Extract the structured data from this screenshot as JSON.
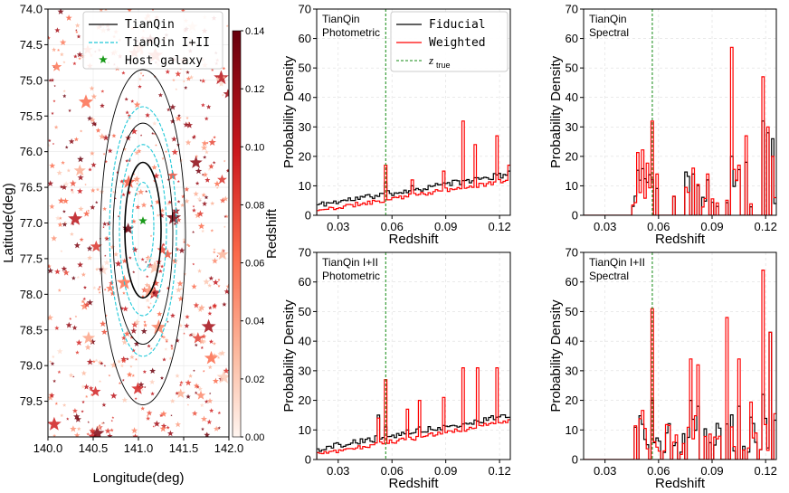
{
  "chart_data": [
    {
      "id": "skymap",
      "type": "scatter",
      "xlabel": "Longitude(deg)",
      "ylabel": "Latitude(deg)",
      "xlim": [
        140.0,
        142.0
      ],
      "ylim": [
        80.0,
        74.0
      ],
      "xticks": [
        "140.0",
        "140.5",
        "141.0",
        "141.5",
        "142.0"
      ],
      "yticks": [
        "74.0",
        "74.5",
        "75.0",
        "75.5",
        "76.0",
        "76.5",
        "77.0",
        "77.5",
        "78.0",
        "78.5",
        "79.0",
        "79.5"
      ],
      "colorbar": {
        "label": "Redshift",
        "min": 0.0,
        "max": 0.14,
        "ticks": [
          "0.00",
          "0.02",
          "0.04",
          "0.06",
          "0.08",
          "0.10",
          "0.12",
          "0.14"
        ]
      },
      "legend": [
        "TianQin",
        "TianQin I+II",
        "Host galaxy"
      ],
      "host_galaxy": {
        "lon": 141.05,
        "lat": 76.97
      },
      "tianqin_contours": [
        {
          "center": [
            141.05,
            77.1
          ],
          "half_width": 0.2,
          "half_height": 0.95
        },
        {
          "center": [
            141.05,
            77.15
          ],
          "half_width": 0.33,
          "half_height": 1.55
        },
        {
          "center": [
            141.05,
            77.2
          ],
          "half_width": 0.47,
          "half_height": 2.35
        }
      ],
      "tianqin_i_ii_contours": [
        {
          "center": [
            141.05,
            77.05
          ],
          "half_width": 0.12,
          "half_height": 0.62
        },
        {
          "center": [
            141.05,
            77.1
          ],
          "half_width": 0.26,
          "half_height": 1.2
        },
        {
          "center": [
            141.05,
            77.12
          ],
          "half_width": 0.37,
          "half_height": 1.75
        }
      ],
      "colors": {
        "tianqin": "#000000",
        "tianqin_i_ii": "#1ec8d8",
        "host": "#1a9a1a",
        "cmap_low": "#fff5f0",
        "cmap_high": "#67000d"
      }
    },
    {
      "id": "tq-photometric",
      "type": "step",
      "label": [
        "TianQin",
        "Photometric"
      ],
      "xlabel": "Redshift",
      "ylabel": "Probability Density",
      "xlim": [
        0.018,
        0.126
      ],
      "ylim": [
        0,
        70
      ],
      "xticks": [
        0.03,
        0.06,
        0.09,
        0.12
      ],
      "xtick_labels": [
        "0.03",
        "0.06",
        "0.09",
        "0.12"
      ],
      "yticks": [
        0,
        10,
        20,
        30,
        40,
        50,
        60,
        70
      ],
      "z_true": 0.0565,
      "legend": [
        "Fiducial",
        "Weighted"
      ],
      "legend_ztrue_base": "z",
      "legend_ztrue_sub": "true",
      "series": [
        {
          "name": "Fiducial",
          "color": "#000000",
          "bin_edges": [
            0.018,
            0.126
          ],
          "values": []
        },
        {
          "name": "Weighted",
          "color": "#ff0000",
          "bin_edges": [
            0.018,
            0.126
          ],
          "values": []
        }
      ]
    },
    {
      "id": "tq-spectral",
      "type": "step",
      "label": [
        "TianQin",
        "Spectral"
      ],
      "xlabel": "Redshift",
      "ylabel": "Probability Density",
      "xlim": [
        0.018,
        0.126
      ],
      "ylim": [
        0,
        70
      ],
      "xticks": [
        0.03,
        0.06,
        0.09,
        0.12
      ],
      "xtick_labels": [
        "0.03",
        "0.06",
        "0.09",
        "0.12"
      ],
      "yticks": [
        0,
        10,
        20,
        30,
        40,
        50,
        60,
        70
      ],
      "z_true": 0.0565,
      "series": [
        {
          "name": "Fiducial",
          "color": "#000000",
          "bin_edges": [
            0.018,
            0.126
          ],
          "values": []
        },
        {
          "name": "Weighted",
          "color": "#ff0000",
          "bin_edges": [
            0.018,
            0.126
          ],
          "values": []
        }
      ]
    },
    {
      "id": "tq12-photometric",
      "type": "step",
      "label": [
        "TianQin I+II",
        "Photometric"
      ],
      "xlabel": "Redshift",
      "ylabel": "Probability Density",
      "xlim": [
        0.018,
        0.126
      ],
      "ylim": [
        0,
        70
      ],
      "xticks": [
        0.03,
        0.06,
        0.09,
        0.12
      ],
      "xtick_labels": [
        "0.03",
        "0.06",
        "0.09",
        "0.12"
      ],
      "yticks": [
        0,
        10,
        20,
        30,
        40,
        50,
        60,
        70
      ],
      "z_true": 0.0565,
      "series": [
        {
          "name": "Fiducial",
          "color": "#000000",
          "bin_edges": [
            0.018,
            0.126
          ],
          "values": []
        },
        {
          "name": "Weighted",
          "color": "#ff0000",
          "bin_edges": [
            0.018,
            0.126
          ],
          "values": []
        }
      ]
    },
    {
      "id": "tq12-spectral",
      "type": "step",
      "label": [
        "TianQin I+II",
        "Spectral"
      ],
      "xlabel": "Redshift",
      "ylabel": "Probability Density",
      "xlim": [
        0.018,
        0.126
      ],
      "ylim": [
        0,
        70
      ],
      "xticks": [
        0.03,
        0.06,
        0.09,
        0.12
      ],
      "xtick_labels": [
        "0.03",
        "0.06",
        "0.09",
        "0.12"
      ],
      "yticks": [
        0,
        10,
        20,
        30,
        40,
        50,
        60,
        70
      ],
      "z_true": 0.0565,
      "series": [
        {
          "name": "Fiducial",
          "color": "#000000",
          "bin_edges": [
            0.018,
            0.126
          ],
          "values": []
        },
        {
          "name": "Weighted",
          "color": "#ff0000",
          "bin_edges": [
            0.018,
            0.126
          ],
          "values": []
        }
      ]
    }
  ]
}
